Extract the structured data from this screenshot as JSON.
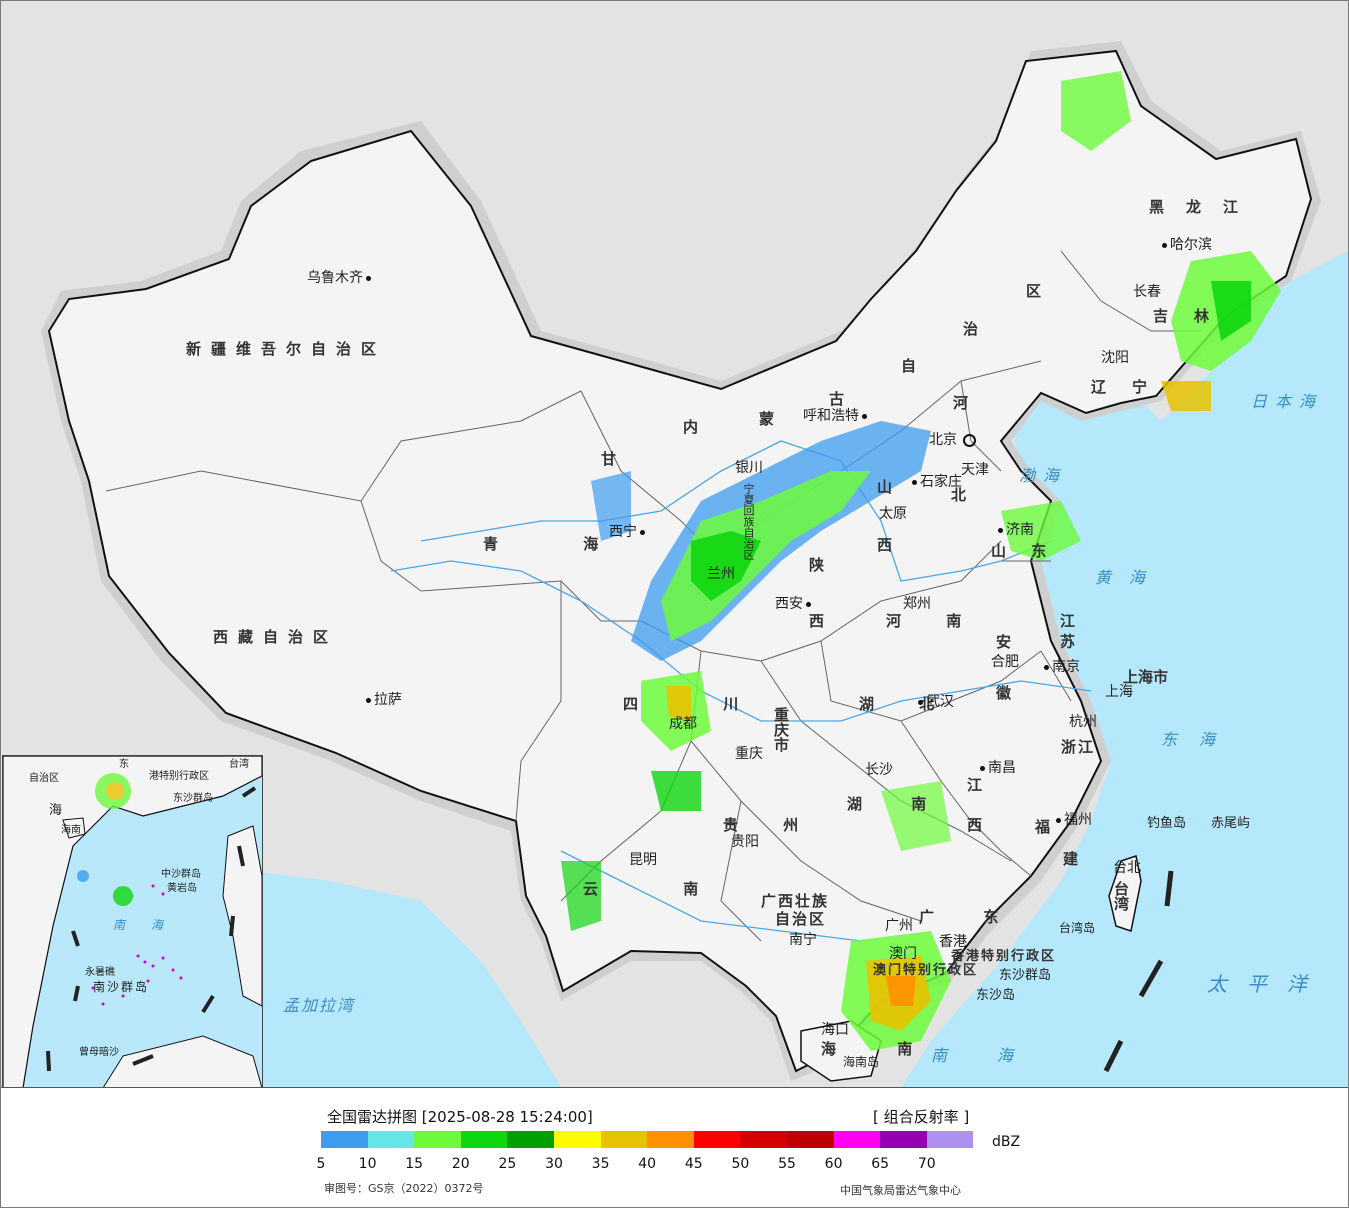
{
  "map": {
    "provinces": [
      {
        "key": "xinjiang",
        "label": "新疆维吾尔自治区"
      },
      {
        "key": "xizang",
        "label": "西藏自治区"
      },
      {
        "key": "qinghai",
        "label": "青 海"
      },
      {
        "key": "gansu",
        "label": "甘"
      },
      {
        "key": "neimenggu1",
        "label": "内"
      },
      {
        "key": "neimenggu2",
        "label": "蒙"
      },
      {
        "key": "neimenggu3",
        "label": "古"
      },
      {
        "key": "neimenggu4",
        "label": "自"
      },
      {
        "key": "neimenggu5",
        "label": "治"
      },
      {
        "key": "neimenggu6",
        "label": "区"
      },
      {
        "key": "heilongjiang",
        "label": "黑龙江"
      },
      {
        "key": "jilin",
        "label": "吉林"
      },
      {
        "key": "liaoning",
        "label": "辽宁"
      },
      {
        "key": "hebei1",
        "label": "河"
      },
      {
        "key": "hebei2",
        "label": "北"
      },
      {
        "key": "shanxi1",
        "label": "山"
      },
      {
        "key": "shanxi2",
        "label": "西"
      },
      {
        "key": "shandong",
        "label": "山 东"
      },
      {
        "key": "henan",
        "label": "河 南"
      },
      {
        "key": "shaanxi1",
        "label": "陕"
      },
      {
        "key": "shaanxi2",
        "label": "西"
      },
      {
        "key": "sichuan",
        "label": "四 川"
      },
      {
        "key": "chongqing",
        "label": "重庆市"
      },
      {
        "key": "hubei",
        "label": "湖 北"
      },
      {
        "key": "hunan",
        "label": "湖 南"
      },
      {
        "key": "anhui1",
        "label": "安"
      },
      {
        "key": "anhui2",
        "label": "徽"
      },
      {
        "key": "jiangsu",
        "label": "江 苏"
      },
      {
        "key": "shanghai",
        "label": "上海市"
      },
      {
        "key": "zhejiang",
        "label": "浙江"
      },
      {
        "key": "jiangxi1",
        "label": "江"
      },
      {
        "key": "jiangxi2",
        "label": "西"
      },
      {
        "key": "fujian1",
        "label": "福"
      },
      {
        "key": "fujian2",
        "label": "建"
      },
      {
        "key": "guizhou",
        "label": "贵 州"
      },
      {
        "key": "yunnan",
        "label": "云 南"
      },
      {
        "key": "guangxi1",
        "label": "广西壮族"
      },
      {
        "key": "guangxi2",
        "label": "自治区"
      },
      {
        "key": "guangdong",
        "label": "广 东"
      },
      {
        "key": "hainan",
        "label": "海 南"
      },
      {
        "key": "taiwan",
        "label": "台湾"
      },
      {
        "key": "ningxia",
        "label": "宁夏回族自治区"
      },
      {
        "key": "xianggang",
        "label": "香港特别行政区"
      },
      {
        "key": "aomen",
        "label": "澳门特别行政区"
      }
    ],
    "cities": [
      {
        "key": "urumqi",
        "label": "乌鲁木齐"
      },
      {
        "key": "lhasa",
        "label": "拉萨"
      },
      {
        "key": "xining",
        "label": "西宁"
      },
      {
        "key": "lanzhou",
        "label": "兰州"
      },
      {
        "key": "yinchuan",
        "label": "银川"
      },
      {
        "key": "hohhot",
        "label": "呼和浩特"
      },
      {
        "key": "beijing",
        "label": "北京"
      },
      {
        "key": "tianjin",
        "label": "天津"
      },
      {
        "key": "shijiazhuang",
        "label": "石家庄"
      },
      {
        "key": "taiyuan",
        "label": "太原"
      },
      {
        "key": "xian",
        "label": "西安"
      },
      {
        "key": "zhengzhou",
        "label": "郑州"
      },
      {
        "key": "jinan",
        "label": "济南"
      },
      {
        "key": "harbin",
        "label": "哈尔滨"
      },
      {
        "key": "changchun",
        "label": "长春"
      },
      {
        "key": "shenyang",
        "label": "沈阳"
      },
      {
        "key": "chengdu",
        "label": "成都"
      },
      {
        "key": "chongqing",
        "label": "重庆"
      },
      {
        "key": "wuhan",
        "label": "武汉"
      },
      {
        "key": "hefei",
        "label": "合肥"
      },
      {
        "key": "nanjing",
        "label": "南京"
      },
      {
        "key": "shanghai",
        "label": "上海"
      },
      {
        "key": "hangzhou",
        "label": "杭州"
      },
      {
        "key": "nanchang",
        "label": "南昌"
      },
      {
        "key": "changsha",
        "label": "长沙"
      },
      {
        "key": "fuzhou",
        "label": "福州"
      },
      {
        "key": "guiyang",
        "label": "贵阳"
      },
      {
        "key": "kunming",
        "label": "昆明"
      },
      {
        "key": "nanning",
        "label": "南宁"
      },
      {
        "key": "guangzhou",
        "label": "广州"
      },
      {
        "key": "xianggang",
        "label": "香港"
      },
      {
        "key": "aomen",
        "label": "澳门"
      },
      {
        "key": "haikou",
        "label": "海口"
      },
      {
        "key": "taibei",
        "label": "台北"
      }
    ],
    "islands": [
      {
        "key": "diaoyu",
        "label": "钓鱼岛"
      },
      {
        "key": "chiwei",
        "label": "赤尾屿"
      },
      {
        "key": "taiwandao",
        "label": "台湾岛"
      },
      {
        "key": "dongsha_qundao",
        "label": "东沙群岛"
      },
      {
        "key": "dongsha_dao",
        "label": "东沙岛"
      },
      {
        "key": "hainandao",
        "label": "海南岛"
      }
    ],
    "seas": [
      {
        "key": "riben",
        "label": "日本海"
      },
      {
        "key": "bohai",
        "label": "渤海"
      },
      {
        "key": "huanghai",
        "label": "黄海"
      },
      {
        "key": "donghai",
        "label": "东海"
      },
      {
        "key": "taipingyang",
        "label": "太平洋"
      },
      {
        "key": "nanhai",
        "label": "南海"
      },
      {
        "key": "mengjiala",
        "label": "孟加拉湾"
      }
    ],
    "inset": {
      "labels": [
        "港特别行政区",
        "台湾",
        "东沙群岛",
        "海南",
        "南海",
        "中沙群岛",
        "黄岩岛",
        "永暑礁",
        "南沙群岛",
        "曾母暗沙",
        "海",
        "自治区",
        "东"
      ]
    }
  },
  "legend": {
    "title": "全国雷达拼图 [2025-08-28 15:24:00]",
    "product": "[ 组合反射率 ]",
    "unit": "dBZ",
    "ticks": [
      "5",
      "10",
      "15",
      "20",
      "25",
      "30",
      "35",
      "40",
      "45",
      "50",
      "55",
      "60",
      "65",
      "70"
    ],
    "colors": [
      "#3d9cf0",
      "#66e6e6",
      "#6dfa3c",
      "#0fd60f",
      "#00a000",
      "#fffc00",
      "#e8c200",
      "#ff9000",
      "#ff0000",
      "#d60000",
      "#c00000",
      "#ff00f0",
      "#9600b4",
      "#ae91ef"
    ],
    "approval": "审图号：GS京（2022）0372号",
    "source": "中国气象局雷达气象中心"
  },
  "colors": {
    "land": "#f4f4f4",
    "outside": "#e3e3e3",
    "water": "#b5e8fb",
    "border": "#111111",
    "river": "#4aa8e6"
  }
}
